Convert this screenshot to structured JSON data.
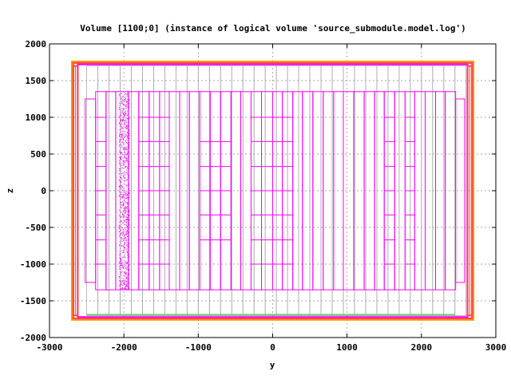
{
  "chart_data": {
    "type": "geometry",
    "title": "Volume [1100;0] (instance of logical volume 'source_submodule.model.log')",
    "xlabel": "y",
    "ylabel": "z",
    "xlim": [
      -3000,
      3000
    ],
    "ylim": [
      -2000,
      2000
    ],
    "xticks": [
      -3000,
      -2000,
      -1000,
      0,
      1000,
      2000,
      3000
    ],
    "yticks": [
      -2000,
      -1500,
      -1000,
      -500,
      0,
      500,
      1000,
      1500,
      2000
    ],
    "xtick_labels": [
      "-3000",
      "-2000",
      "-1000",
      "0",
      "1000",
      "2000",
      "3000"
    ],
    "ytick_labels": [
      "-2000",
      "-1500",
      "-1000",
      "-500",
      "0",
      "500",
      "1000",
      "1500",
      "2000"
    ],
    "grid": true,
    "colors": {
      "outer_frame": "#ff4444",
      "container": "#ff00ff",
      "detector_gray": "#aaaaaa",
      "green_strip": "#66cc66",
      "orange_edge": "#ff9900",
      "module": "#ff00ff",
      "points": "#ff00ff"
    },
    "outer_frames": [
      {
        "y0": -2700,
        "y1": 2700,
        "z0": -1760,
        "z1": 1760,
        "color": "#ff9900"
      },
      {
        "y0": -2680,
        "y1": 2680,
        "z0": -1740,
        "z1": 1740,
        "color": "#ff4444"
      },
      {
        "y0": -2620,
        "y1": 2620,
        "z0": -1720,
        "z1": 1720,
        "color": "#ff00ff"
      }
    ],
    "side_bars": [
      {
        "y0": -2680,
        "y1": -2620,
        "z0": -1700,
        "z1": 1700
      },
      {
        "y0": 2620,
        "y1": 2680,
        "z0": -1700,
        "z1": 1700
      }
    ],
    "gray_panels_y": [
      -2500,
      -2350,
      -2200,
      -2050,
      -1900,
      -1750,
      -1600,
      -1450,
      -1300,
      -1150,
      -1000,
      -850,
      -700,
      -550,
      -400,
      -250,
      -100,
      50,
      200,
      350,
      500,
      650,
      800,
      950,
      1100,
      1250,
      1400,
      1550,
      1700,
      1850,
      2000,
      2150,
      2300,
      2450
    ],
    "gray_panel_z": [
      -1700,
      1700
    ],
    "green_strip": {
      "y0": -2500,
      "y1": 2450,
      "z": -1690
    },
    "module_columns": [
      {
        "y0": -2520,
        "y1": -2380,
        "z0": -1250,
        "z1": 1250,
        "dividers": []
      },
      {
        "y0": -2380,
        "y1": -2240,
        "z0": -1350,
        "z1": 1350,
        "dividers": [
          -1000,
          -670,
          -330,
          0,
          330,
          670,
          1000
        ]
      },
      {
        "y0": -2240,
        "y1": -2110,
        "z0": -1350,
        "z1": 1350,
        "dividers": []
      },
      {
        "y0": -2110,
        "y1": -1940,
        "z0": -1350,
        "z1": 1350,
        "dividers": []
      },
      {
        "y0": -1940,
        "y1": -1800,
        "z0": -1350,
        "z1": 1350,
        "dividers": []
      },
      {
        "y0": -1800,
        "y1": -1660,
        "z0": -1350,
        "z1": 1350,
        "dividers": [
          -1000,
          -670,
          -330,
          0,
          330,
          670,
          1000
        ]
      },
      {
        "y0": -1660,
        "y1": -1520,
        "z0": -1350,
        "z1": 1350,
        "dividers": [
          -1000,
          -670,
          -330,
          0,
          330,
          670,
          1000
        ]
      },
      {
        "y0": -1520,
        "y1": -1390,
        "z0": -1350,
        "z1": 1350,
        "dividers": [
          -1000,
          -670,
          -330,
          0,
          330,
          670,
          1000
        ]
      },
      {
        "y0": -1390,
        "y1": -1250,
        "z0": -1350,
        "z1": 1350,
        "dividers": []
      },
      {
        "y0": -1250,
        "y1": -1120,
        "z0": -1350,
        "z1": 1350,
        "dividers": []
      },
      {
        "y0": -1120,
        "y1": -980,
        "z0": -1350,
        "z1": 1350,
        "dividers": []
      },
      {
        "y0": -980,
        "y1": -840,
        "z0": -1350,
        "z1": 1350,
        "dividers": [
          -670,
          -330,
          0,
          330,
          670
        ]
      },
      {
        "y0": -840,
        "y1": -700,
        "z0": -1350,
        "z1": 1350,
        "dividers": [
          -670,
          -330,
          0,
          330,
          670
        ]
      },
      {
        "y0": -700,
        "y1": -560,
        "z0": -1350,
        "z1": 1350,
        "dividers": [
          -670,
          -330,
          0,
          330,
          670
        ]
      },
      {
        "y0": -560,
        "y1": -430,
        "z0": -1350,
        "z1": 1350,
        "dividers": []
      },
      {
        "y0": -430,
        "y1": -290,
        "z0": -1350,
        "z1": 1350,
        "dividers": []
      },
      {
        "y0": -290,
        "y1": -150,
        "z0": -1350,
        "z1": 1350,
        "dividers": [
          -1000,
          -670,
          -330,
          0,
          330,
          670,
          1000
        ]
      },
      {
        "y0": -150,
        "y1": 0,
        "z0": -1350,
        "z1": 1350,
        "dividers": [
          -1000,
          -670,
          -330,
          0,
          330,
          670,
          1000
        ]
      },
      {
        "y0": 0,
        "y1": 130,
        "z0": -1350,
        "z1": 1350,
        "dividers": [
          -1000,
          -670,
          -330,
          0,
          330,
          670,
          1000
        ]
      },
      {
        "y0": 130,
        "y1": 270,
        "z0": -1350,
        "z1": 1350,
        "dividers": [
          -1000,
          -670,
          -330,
          0,
          330,
          670,
          1000
        ]
      },
      {
        "y0": 270,
        "y1": 400,
        "z0": -1350,
        "z1": 1350,
        "dividers": []
      },
      {
        "y0": 400,
        "y1": 540,
        "z0": -1350,
        "z1": 1350,
        "dividers": []
      },
      {
        "y0": 540,
        "y1": 680,
        "z0": -1350,
        "z1": 1350,
        "dividers": []
      },
      {
        "y0": 680,
        "y1": 820,
        "z0": -1350,
        "z1": 1350,
        "dividers": []
      },
      {
        "y0": 820,
        "y1": 950,
        "z0": -1350,
        "z1": 1350,
        "dividers": []
      },
      {
        "y0": 950,
        "y1": 1090,
        "z0": -1350,
        "z1": 1350,
        "dividers": []
      },
      {
        "y0": 1090,
        "y1": 1230,
        "z0": -1350,
        "z1": 1350,
        "dividers": []
      },
      {
        "y0": 1230,
        "y1": 1370,
        "z0": -1350,
        "z1": 1350,
        "dividers": []
      },
      {
        "y0": 1370,
        "y1": 1500,
        "z0": -1350,
        "z1": 1350,
        "dividers": []
      },
      {
        "y0": 1500,
        "y1": 1640,
        "z0": -1350,
        "z1": 1350,
        "dividers": [
          -1000,
          -670,
          -330,
          0,
          330,
          670,
          1000
        ]
      },
      {
        "y0": 1640,
        "y1": 1780,
        "z0": -1350,
        "z1": 1350,
        "dividers": []
      },
      {
        "y0": 1780,
        "y1": 1910,
        "z0": -1350,
        "z1": 1350,
        "dividers": [
          -1000,
          -670,
          -330,
          0,
          330,
          670,
          1000
        ]
      },
      {
        "y0": 1910,
        "y1": 2050,
        "z0": -1350,
        "z1": 1350,
        "dividers": []
      },
      {
        "y0": 2050,
        "y1": 2190,
        "z0": -1350,
        "z1": 1350,
        "dividers": []
      },
      {
        "y0": 2190,
        "y1": 2320,
        "z0": -1350,
        "z1": 1350,
        "dividers": []
      },
      {
        "y0": 2320,
        "y1": 2460,
        "z0": -1350,
        "z1": 1350,
        "dividers": []
      },
      {
        "y0": 2460,
        "y1": 2580,
        "z0": -1250,
        "z1": 1250,
        "dividers": []
      }
    ],
    "point_band": {
      "y0": -2070,
      "y1": -1930,
      "z0": -1340,
      "z1": 1340,
      "count": 900,
      "marker": "dot"
    }
  }
}
